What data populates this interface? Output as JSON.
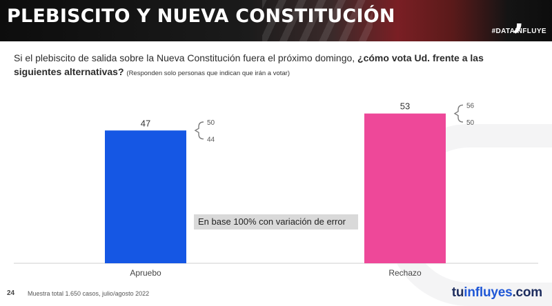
{
  "header": {
    "title": "PLEBISCITO Y NUEVA CONSTITUCIÓN",
    "hashtag": "#DATAINFLUYE",
    "brand_mark": ","
  },
  "question": {
    "text_plain": "Si el plebiscito de salida sobre la Nueva Constitución fuera el próximo domingo, ",
    "text_bold": "¿cómo vota Ud. frente a las siguientes alternativas?",
    "note": "(Responden solo personas que indican que irán a votar)"
  },
  "chart_data": {
    "type": "bar",
    "categories": [
      "Apruebo",
      "Rechazo"
    ],
    "values": [
      47,
      53
    ],
    "value_labels": [
      "47",
      "53"
    ],
    "colors": [
      "#1557e4",
      "#ee4899"
    ],
    "error_ranges": [
      {
        "low": 44,
        "high": 50,
        "low_label": "44",
        "high_label": "50"
      },
      {
        "low": 50,
        "high": 56,
        "low_label": "50",
        "high_label": "56"
      }
    ],
    "ylim": [
      0,
      60
    ],
    "grid": false,
    "annotation": "En base 100% con variación de error"
  },
  "footer": {
    "page_number": "24",
    "note": "Muestra total 1.650 casos, julio/agosto 2022",
    "logo_part1": "tu",
    "logo_part2": "influyes",
    "logo_part3": ".com"
  }
}
